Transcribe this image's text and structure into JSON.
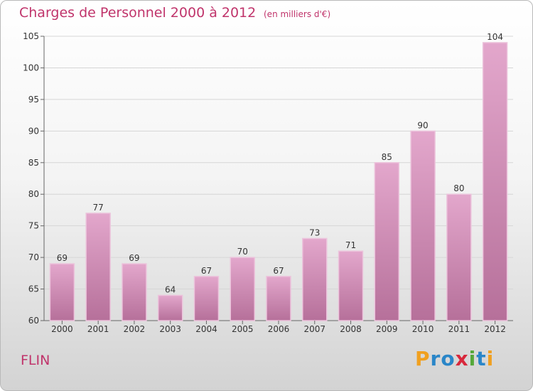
{
  "header": {
    "title": "Charges de Personnel 2000 à 2012",
    "subtitle": "(en milliers d'€)"
  },
  "footer": {
    "commune": "FLIN",
    "logo": "Proxiti"
  },
  "colors": {
    "title": "#c0346b",
    "bar_top": "#e3a7cc",
    "bar_bottom": "#b6709a",
    "bar_border": "#ecc4dc"
  },
  "chart_data": {
    "type": "bar",
    "categories": [
      "2000",
      "2001",
      "2002",
      "2003",
      "2004",
      "2005",
      "2006",
      "2007",
      "2008",
      "2009",
      "2010",
      "2011",
      "2012"
    ],
    "values": [
      69,
      77,
      69,
      64,
      67,
      70,
      67,
      73,
      71,
      85,
      90,
      80,
      104
    ],
    "data_labels": [
      "69",
      "77",
      "69",
      "64",
      "67",
      "70",
      "67",
      "73",
      "71",
      "85",
      "90",
      "80",
      "104"
    ],
    "ylim": [
      60,
      105
    ],
    "yticks": [
      "60",
      "65",
      "70",
      "75",
      "80",
      "85",
      "90",
      "95",
      "100",
      "105"
    ],
    "grid": true
  }
}
